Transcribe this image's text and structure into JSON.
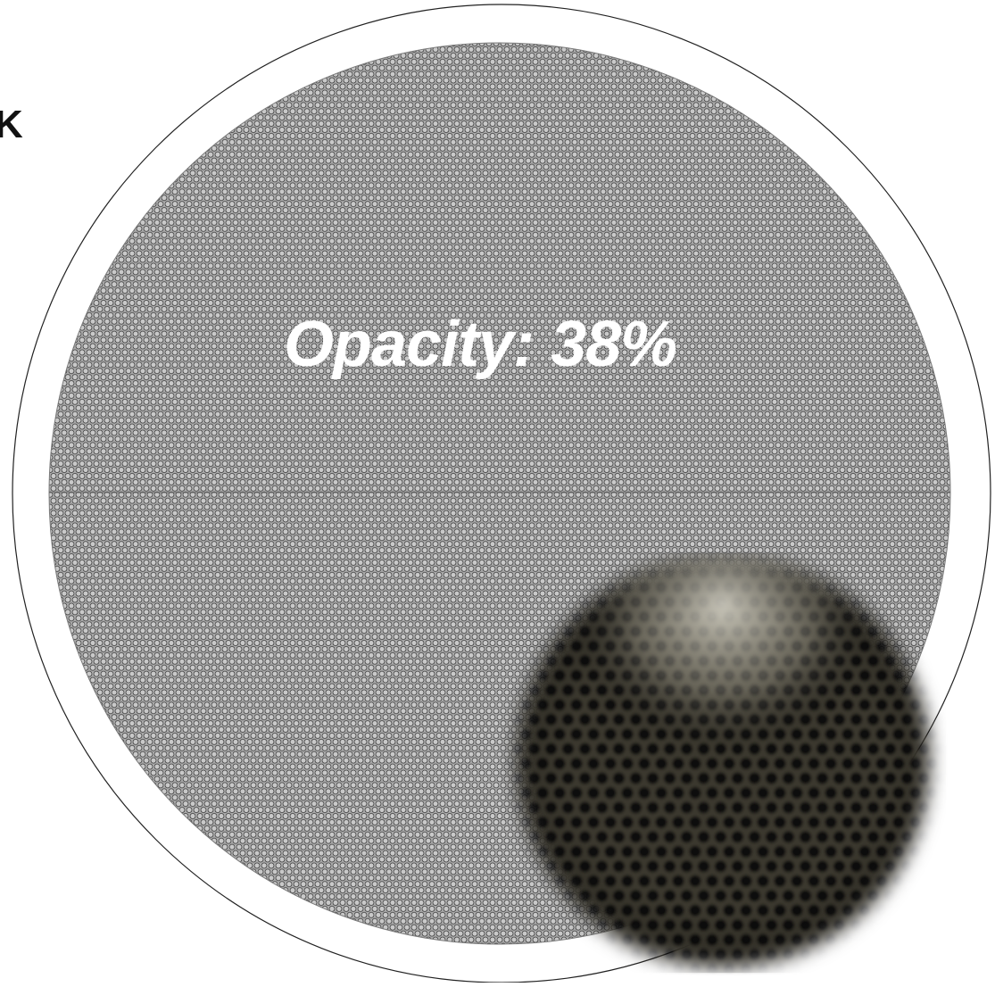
{
  "figure": {
    "panel_letter": "K",
    "label_text": "Opacity: 38%",
    "opacity_value_percent": 38
  },
  "colors": {
    "background": "#ffffff",
    "outline": "#222222",
    "hole_array_fill": "#a9a9a9",
    "hole_stroke": "#222222",
    "label_color": "#ffffff",
    "inset_base": "#2a2822",
    "inset_hole_dark": "#0c0b09",
    "inset_hole_light": "#cfccbf"
  },
  "icons": {
    "outer_circle": "circle-outline",
    "hole_array": "hexagonal-hole-pattern",
    "inset": "magnified-photo-inset"
  }
}
